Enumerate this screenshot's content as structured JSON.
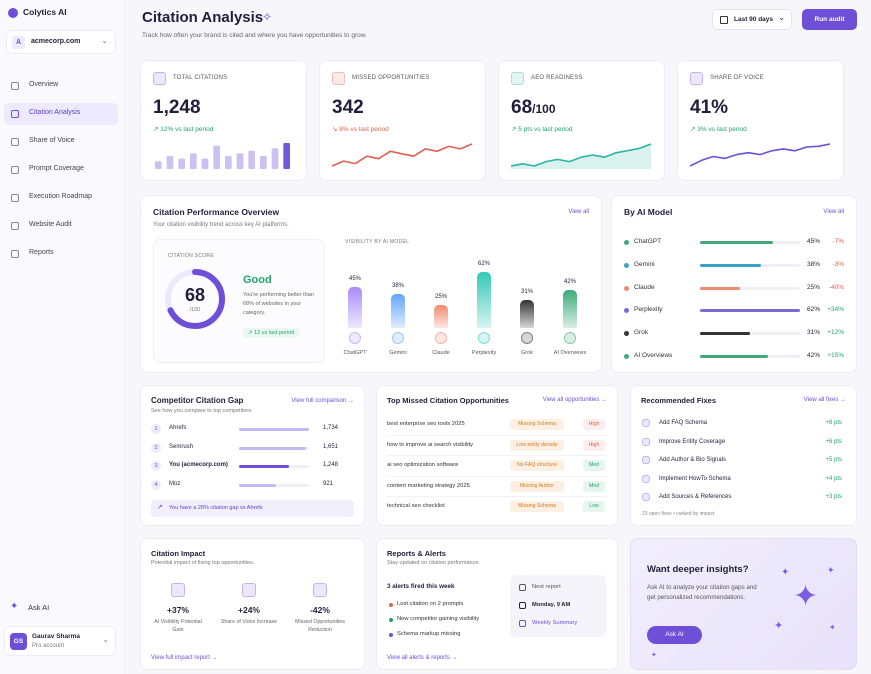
{
  "sidebar": {
    "brand": "Colytics AI",
    "workspace_initial": "A",
    "workspace": "acmecorp.com",
    "nav": [
      "Overview",
      "Citation Analysis",
      "Share of Voice",
      "Prompt Coverage",
      "Execution Roadmap",
      "Website Audit",
      "Reports"
    ],
    "active": 1,
    "ask": "Ask AI",
    "user": {
      "initials": "GS",
      "name": "Gaurav Sharma",
      "plan": "Pro account"
    }
  },
  "header": {
    "title": "Citation Analysis",
    "subtitle": "Track how often your brand is cited and where you have opportunities to grow.",
    "date_range": "Last 90 days",
    "button": "Run audit"
  },
  "kpis": [
    {
      "label": "TOTAL CITATIONS",
      "value": "1,248",
      "delta": "↗ 12% vs last period",
      "color": "#6d4fd8",
      "delta_color": "#22a36a",
      "spark_type": "bars",
      "spark": [
        3,
        5,
        4,
        6,
        4,
        9,
        5,
        6,
        7,
        5,
        8,
        10
      ]
    },
    {
      "label": "MISSED OPPORTUNITIES",
      "value": "342",
      "delta": "↘ 8% vs last period",
      "color": "#e0614f",
      "delta_color": "#e0614f",
      "spark_type": "line",
      "spark": [
        3,
        4,
        3.5,
        5,
        4.5,
        6,
        5.5,
        5,
        6.5,
        6,
        7,
        6.5,
        7.5
      ]
    },
    {
      "label": "AEO READINESS",
      "value": "68",
      "suffix": "/100",
      "delta": "↗ 5 pts vs last period",
      "color": "#2bb5a0",
      "delta_color": "#22a36a",
      "spark_type": "area",
      "spark": [
        3,
        3.5,
        3,
        4,
        4.5,
        4,
        5,
        5.5,
        5,
        6,
        6.5,
        7,
        8
      ]
    },
    {
      "label": "SHARE OF VOICE",
      "value": "41%",
      "delta": "↗ 3% vs last period",
      "color": "#6d4fd8",
      "delta_color": "#22a36a",
      "spark_type": "line",
      "spark": [
        2,
        3.5,
        4.5,
        4,
        5,
        5.5,
        5,
        6,
        6.5,
        6,
        7,
        7.2,
        7.8
      ]
    }
  ],
  "performance": {
    "title": "Citation Performance Overview",
    "subtitle": "Your citation visibility trend across key AI platforms.",
    "link": "View all",
    "score_label": "CITATION SCORE",
    "score": 68,
    "score_max": "/100",
    "rating": "Good",
    "description": "You're performing better than 68% of websites in your category.",
    "score_delta": "↗ 12 vs last period",
    "chart_title": "VISIBILITY BY AI MODEL",
    "categories": [
      "ChatGPT",
      "Gemini",
      "Claude",
      "Perplexity",
      "Grok",
      "AI Overviews"
    ],
    "values": [
      45,
      38,
      25,
      62,
      31,
      42
    ],
    "value_labels": [
      "45%",
      "38%",
      "25%",
      "62%",
      "31%",
      "42%"
    ],
    "colors": [
      "#a78bfa",
      "#60a5fa",
      "#f08a6e",
      "#34c9b7",
      "#333333",
      "#3fa97a"
    ]
  },
  "by_model": {
    "title": "By AI Model",
    "link": "View all",
    "rows": [
      {
        "name": "ChatGPT",
        "value": 45,
        "label": "45%",
        "change": "-7%",
        "color": "#3fa97a",
        "change_color": "#e0614f"
      },
      {
        "name": "Gemini",
        "value": 38,
        "label": "38%",
        "change": "-3%",
        "color": "#3aa0c8",
        "change_color": "#e0614f"
      },
      {
        "name": "Claude",
        "value": 25,
        "label": "25%",
        "change": "-40%",
        "color": "#f08a6e",
        "change_color": "#e0614f"
      },
      {
        "name": "Perplexity",
        "value": 62,
        "label": "62%",
        "change": "+34%",
        "color": "#7c6bd6",
        "change_color": "#22a36a"
      },
      {
        "name": "Grok",
        "value": 31,
        "label": "31%",
        "change": "+12%",
        "color": "#333333",
        "change_color": "#22a36a"
      },
      {
        "name": "AI Overviews",
        "value": 42,
        "label": "42%",
        "change": "+15%",
        "color": "#3fa97a",
        "change_color": "#22a36a"
      }
    ]
  },
  "competitors": {
    "title": "Competitor Citation Gap",
    "subtitle": "See how you compare to top competitors.",
    "link": "View full comparison →",
    "rows": [
      {
        "rank": 1,
        "name": "Ahrefs",
        "value": 1734,
        "label": "1,734"
      },
      {
        "rank": 2,
        "name": "Semrush",
        "value": 1651,
        "label": "1,651"
      },
      {
        "rank": 3,
        "name": "You (acmecorp.com)",
        "value": 1248,
        "label": "1,248"
      },
      {
        "rank": 4,
        "name": "Moz",
        "value": 921,
        "label": "921"
      }
    ],
    "note": "You have a 28% citation gap vs Ahrefs"
  },
  "opportunities": {
    "title": "Top Missed Citation Opportunities",
    "link": "View all opportunities →",
    "rows": [
      {
        "query": "best enterprise seo tools 2025",
        "issue": "Missing Schema",
        "priority": "High",
        "color": "#e0614f"
      },
      {
        "query": "how to improve ai search visibility",
        "issue": "Low entity density",
        "priority": "High",
        "color": "#e0614f"
      },
      {
        "query": "ai seo optimization software",
        "issue": "No FAQ structure",
        "priority": "Med",
        "color": "#22a36a"
      },
      {
        "query": "content marketing strategy 2025",
        "issue": "Missing Author",
        "priority": "Med",
        "color": "#22a36a"
      },
      {
        "query": "technical seo checklist",
        "issue": "Missing Schema",
        "priority": "Low",
        "color": "#22a36a"
      }
    ]
  },
  "fixes": {
    "title": "Recommended Fixes",
    "link": "View all fixes →",
    "rows": [
      {
        "name": "Add FAQ Schema",
        "impact": "+8 pts"
      },
      {
        "name": "Improve Entity Coverage",
        "impact": "+6 pts"
      },
      {
        "name": "Add Author & Bio Signals",
        "impact": "+5 pts"
      },
      {
        "name": "Implement HowTo Schema",
        "impact": "+4 pts"
      },
      {
        "name": "Add Sources & References",
        "impact": "+3 pts"
      }
    ],
    "footer": "23 open fixes • ranked by impact"
  },
  "impact": {
    "title": "Citation Impact",
    "subtitle": "Potential impact of fixing top opportunities.",
    "items": [
      {
        "value": "+37%",
        "label": "AI Visibility Potential Gain"
      },
      {
        "value": "+24%",
        "label": "Share of Voice Increase"
      },
      {
        "value": "-42%",
        "label": "Missed Opportunities Reduction"
      }
    ],
    "link": "View full impact report →"
  },
  "reports": {
    "title": "Reports & Alerts",
    "subtitle": "Stay updated on citation performance.",
    "count": "3 alerts fired this week",
    "alerts": [
      {
        "text": "Lost citation on 2 prompts",
        "color": "#e0614f"
      },
      {
        "text": "New competitor gaining visibility",
        "color": "#22a36a"
      },
      {
        "text": "Schema markup missing",
        "color": "#6d4fd8"
      }
    ],
    "next_label": "Next report",
    "next_time": "Monday, 9 AM",
    "next_type": "Weekly Summary",
    "link": "View all alerts & reports →"
  },
  "insights": {
    "title": "Want deeper insights?",
    "text": "Ask AI to analyze your citation gaps and get personalized recommendations.",
    "button": "Ask AI"
  }
}
